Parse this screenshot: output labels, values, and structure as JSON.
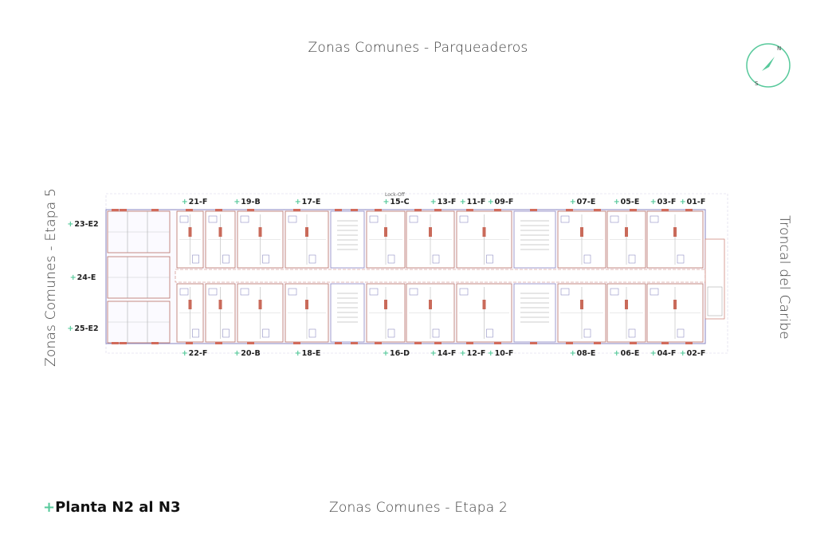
{
  "labels": {
    "top": "Zonas Comunes - Parqueaderos",
    "bottom": "Zonas Comunes - Etapa 2",
    "left": "Zonas Comunes - Etapa 5",
    "right": "Troncal del Caribe"
  },
  "title": {
    "prefix": "+",
    "text": "Planta N2 al N3"
  },
  "compass": {
    "north": "N",
    "south": "S",
    "accent": "#57c99b"
  },
  "lock_off_note": "Lock-Off",
  "units_top": [
    {
      "label": "21-F"
    },
    {
      "label": "19-B"
    },
    {
      "label": "17-E"
    },
    {
      "label": "15-C"
    },
    {
      "label": "13-F"
    },
    {
      "label": "11-F"
    },
    {
      "label": "09-F"
    },
    {
      "label": "07-E"
    },
    {
      "label": "05-E"
    },
    {
      "label": "03-F"
    },
    {
      "label": "01-F"
    }
  ],
  "units_bottom": [
    {
      "label": "22-F"
    },
    {
      "label": "20-B"
    },
    {
      "label": "18-E"
    },
    {
      "label": "16-D"
    },
    {
      "label": "14-F"
    },
    {
      "label": "12-F"
    },
    {
      "label": "10-F"
    },
    {
      "label": "08-E"
    },
    {
      "label": "06-E"
    },
    {
      "label": "04-F"
    },
    {
      "label": "02-F"
    }
  ],
  "units_left": [
    {
      "label": "23-E2"
    },
    {
      "label": "24-E"
    },
    {
      "label": "25-E2"
    }
  ],
  "unit_prefix": "+"
}
